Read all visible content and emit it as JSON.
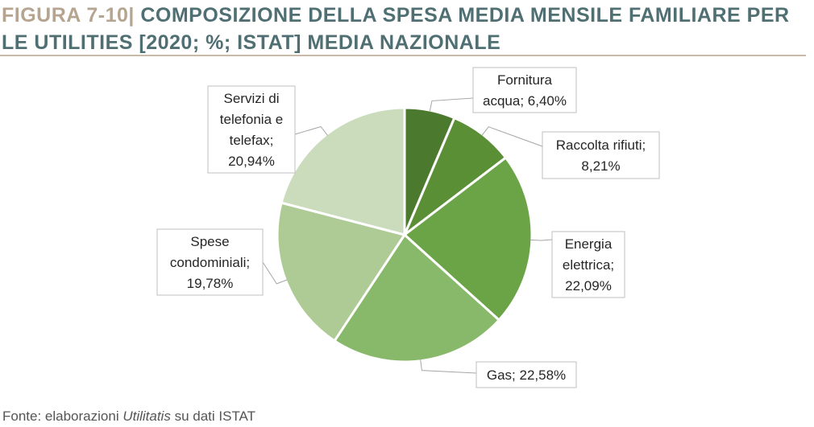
{
  "header": {
    "figure_label": "FIGURA 7-10|",
    "title": "COMPOSIZIONE DELLA SPESA MEDIA MENSILE FAMILIARE PER LE UTILITIES [2020; %; ISTAT] MEDIA NAZIONALE"
  },
  "chart_data": {
    "type": "pie",
    "title": "",
    "slices": [
      {
        "label_lines": [
          "Fornitura",
          "acqua; 6,40%"
        ],
        "value": 6.4,
        "color": "#4b7a2e"
      },
      {
        "label_lines": [
          "Raccolta rifiuti;",
          "8,21%"
        ],
        "value": 8.21,
        "color": "#5b8f35"
      },
      {
        "label_lines": [
          "Energia",
          "elettrica;",
          "22,09%"
        ],
        "value": 22.09,
        "color": "#6ba446"
      },
      {
        "label_lines": [
          "Gas; 22,58%"
        ],
        "value": 22.58,
        "color": "#88b96a"
      },
      {
        "label_lines": [
          "Spese",
          "condominiali;",
          "19,78%"
        ],
        "value": 19.78,
        "color": "#aecb96"
      },
      {
        "label_lines": [
          "Servizi di",
          "telefonia e",
          "telefax;",
          "20,94%"
        ],
        "value": 20.94,
        "color": "#cadcbc"
      }
    ]
  },
  "footer": {
    "source_prefix": "Fonte: elaborazioni ",
    "source_italic": "Utilitatis",
    "source_suffix": " su dati ISTAT"
  }
}
